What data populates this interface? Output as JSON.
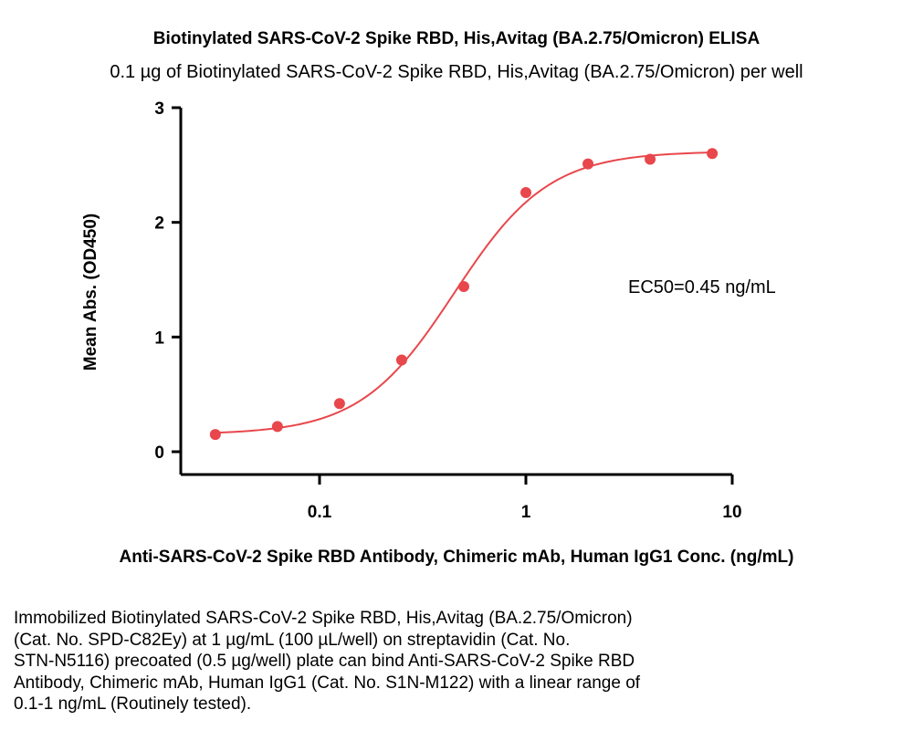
{
  "chart_data": {
    "type": "scatter",
    "title": "Biotinylated SARS-CoV-2 Spike RBD, His,Avitag (BA.2.75/Omicron) ELISA",
    "subtitle": "0.1 µg of Biotinylated SARS-CoV-2 Spike RBD, His,Avitag (BA.2.75/Omicron) per well",
    "xlabel": "Anti-SARS-CoV-2 Spike RBD Antibody, Chimeric mAb, Human IgG1 Conc. (ng/mL)",
    "ylabel": "Mean Abs. (OD450)",
    "xscale": "log",
    "xlim": [
      0.02,
      10
    ],
    "ylim": [
      0,
      3
    ],
    "xticks": [
      0.1,
      1,
      10
    ],
    "xtick_labels": [
      "0.1",
      "1",
      "10"
    ],
    "yticks": [
      0,
      1,
      2,
      3
    ],
    "ytick_labels": [
      "0",
      "1",
      "2",
      "3"
    ],
    "grid": false,
    "color": "#E8474C",
    "series": [
      {
        "x": [
          0.03125,
          0.0625,
          0.125,
          0.25,
          0.5,
          1,
          2,
          4,
          8
        ],
        "y": [
          0.15,
          0.22,
          0.42,
          0.8,
          1.44,
          2.26,
          2.51,
          2.55,
          2.6
        ],
        "fit": {
          "model": "4PL",
          "bottom": 0.15,
          "top": 2.62,
          "ec50": 0.45,
          "hill": 1.9
        }
      }
    ],
    "annotations": [
      {
        "text": "EC50=0.45 ng/mL"
      }
    ]
  },
  "caption_lines": [
    "Immobilized Biotinylated SARS-CoV-2 Spike RBD, His,Avitag (BA.2.75/Omicron)",
    "(Cat. No. SPD-C82Ey) at 1 µg/mL (100 µL/well) on streptavidin (Cat. No.",
    "STN-N5116) precoated (0.5 µg/well) plate can bind Anti-SARS-CoV-2 Spike RBD",
    "Antibody, Chimeric mAb, Human IgG1 (Cat. No. S1N-M122) with a linear range of",
    "0.1-1 ng/mL (Routinely tested)."
  ]
}
